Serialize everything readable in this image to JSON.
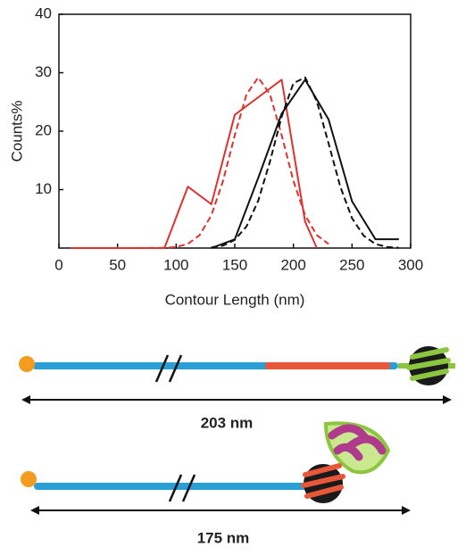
{
  "chart_data": {
    "type": "line",
    "xlabel": "Contour Length (nm)",
    "ylabel": "Counts%",
    "xlim": [
      0,
      300
    ],
    "xticks": [
      0,
      50,
      100,
      150,
      200,
      250,
      300
    ],
    "ylim": [
      0,
      40
    ],
    "yticks": [
      10,
      20,
      30,
      40
    ],
    "series": [
      {
        "color": "#e0312f",
        "dashed": false,
        "x": [
          10,
          30,
          50,
          70,
          90,
          110,
          130,
          150,
          170,
          190,
          210,
          220
        ],
        "values": [
          0,
          0,
          0,
          0,
          0,
          10.5,
          7.5,
          22.8,
          25.8,
          28.8,
          4.5,
          0
        ]
      },
      {
        "color": "#e0312f",
        "dashed": true,
        "x": [
          10,
          30,
          50,
          70,
          90,
          100,
          110,
          120,
          130,
          140,
          150,
          160,
          170,
          180,
          190,
          200,
          210,
          220,
          230
        ],
        "values": [
          0,
          0,
          0,
          0,
          0.04,
          0.18,
          0.71,
          2.2,
          5.6,
          11.5,
          19.3,
          26.3,
          29.2,
          26.3,
          19.3,
          11.5,
          5.6,
          2.2,
          0.7
        ]
      },
      {
        "color": "#111111",
        "dashed": false,
        "x": [
          130,
          150,
          170,
          190,
          210,
          230,
          250,
          270,
          290
        ],
        "values": [
          0,
          1.5,
          12,
          23,
          28.8,
          22,
          8,
          1.5,
          1.5
        ]
      },
      {
        "color": "#111111",
        "dashed": true,
        "x": [
          130,
          140,
          150,
          160,
          170,
          180,
          190,
          200,
          210,
          220,
          230,
          240,
          250,
          260,
          270,
          280,
          290
        ],
        "values": [
          0.11,
          0.42,
          1.4,
          3.7,
          8.1,
          14.8,
          22.5,
          28.2,
          29.2,
          25.1,
          17.9,
          10.5,
          5.1,
          2.1,
          0.69,
          0.19,
          0.04
        ]
      }
    ]
  },
  "diagram": {
    "labels": [
      "203 nm",
      "175 nm"
    ]
  }
}
